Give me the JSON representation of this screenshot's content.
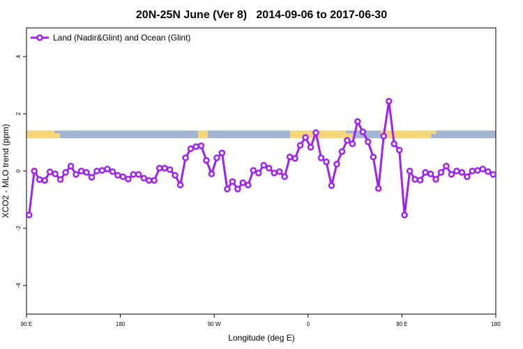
{
  "chart_data": {
    "type": "line",
    "title": "20N-25N June (Ver 8)   2014-09-06 to 2017-06-30",
    "x_label": "Longitude (deg E)",
    "y_label": "XCO2 - MLO trend (ppm)",
    "xlim": [
      90,
      540
    ],
    "ylim": [
      -5,
      5
    ],
    "xticks": [
      {
        "value": 90,
        "label": "90 E"
      },
      {
        "value": 180,
        "label": "180"
      },
      {
        "value": 270,
        "label": "90 W"
      },
      {
        "value": 360,
        "label": "0"
      },
      {
        "value": 450,
        "label": "90 E"
      },
      {
        "value": 540,
        "label": "180"
      }
    ],
    "yticks": [
      -4,
      -2,
      0,
      2,
      4
    ],
    "legend": "top-left",
    "grid": false,
    "x": [
      92.5,
      97.5,
      102.5,
      107.5,
      112.5,
      117.5,
      122.5,
      127.5,
      132.5,
      137.5,
      142.5,
      147.5,
      152.5,
      157.5,
      162.5,
      167.5,
      172.5,
      177.5,
      182.5,
      187.5,
      192.5,
      197.5,
      202.5,
      207.5,
      212.5,
      217.5,
      222.5,
      227.5,
      232.5,
      237.5,
      242.5,
      247.5,
      252.5,
      257.5,
      262.5,
      267.5,
      272.5,
      277.5,
      282.5,
      287.5,
      292.5,
      297.5,
      302.5,
      307.5,
      312.5,
      317.5,
      322.5,
      327.5,
      332.5,
      337.5,
      342.5,
      347.5,
      352.5,
      357.5,
      362.5,
      367.5,
      372.5,
      377.5,
      382.5,
      387.5,
      392.5,
      397.5,
      402.5,
      407.5,
      412.5,
      417.5,
      422.5,
      427.5,
      432.5,
      437.5,
      442.5,
      447.5,
      452.5,
      457.5,
      462.5,
      467.5,
      472.5,
      477.5,
      482.5,
      487.5,
      492.5,
      497.5,
      502.5,
      507.5,
      512.5,
      517.5,
      522.5,
      527.5,
      532.5,
      537.5
    ],
    "series": [
      {
        "name": "Land (Nadir&Glint) and Ocean (Glint)",
        "color": "#a020f0",
        "values": [
          -1.54,
          0,
          -0.3,
          -0.33,
          -0.03,
          -0.1,
          -0.3,
          -0.05,
          0.17,
          -0.12,
          0,
          -0.05,
          -0.22,
          0,
          0.02,
          0.07,
          -0.02,
          -0.15,
          -0.2,
          -0.28,
          -0.12,
          -0.12,
          -0.25,
          -0.33,
          -0.33,
          0.1,
          0.1,
          0.05,
          -0.15,
          -0.49,
          0.46,
          0.78,
          0.85,
          0.88,
          0.37,
          -0.1,
          0.46,
          0.63,
          -0.63,
          -0.37,
          -0.63,
          -0.41,
          -0.49,
          0.02,
          -0.07,
          0.2,
          0.1,
          -0.07,
          -0.02,
          -0.2,
          0.49,
          0.44,
          0.9,
          1.17,
          0.83,
          1.34,
          0.46,
          0.32,
          -0.51,
          0.24,
          0.68,
          1.07,
          0.95,
          1.73,
          1.37,
          1.02,
          0.49,
          -0.61,
          1.22,
          2.44,
          0.95,
          0.73,
          -1.54,
          0,
          -0.29,
          -0.32,
          -0.05,
          -0.1,
          -0.29,
          -0.05,
          0.17,
          -0.12,
          0,
          -0.05,
          -0.2,
          0,
          0.02,
          0.07,
          -0.02,
          -0.12
        ]
      }
    ]
  }
}
